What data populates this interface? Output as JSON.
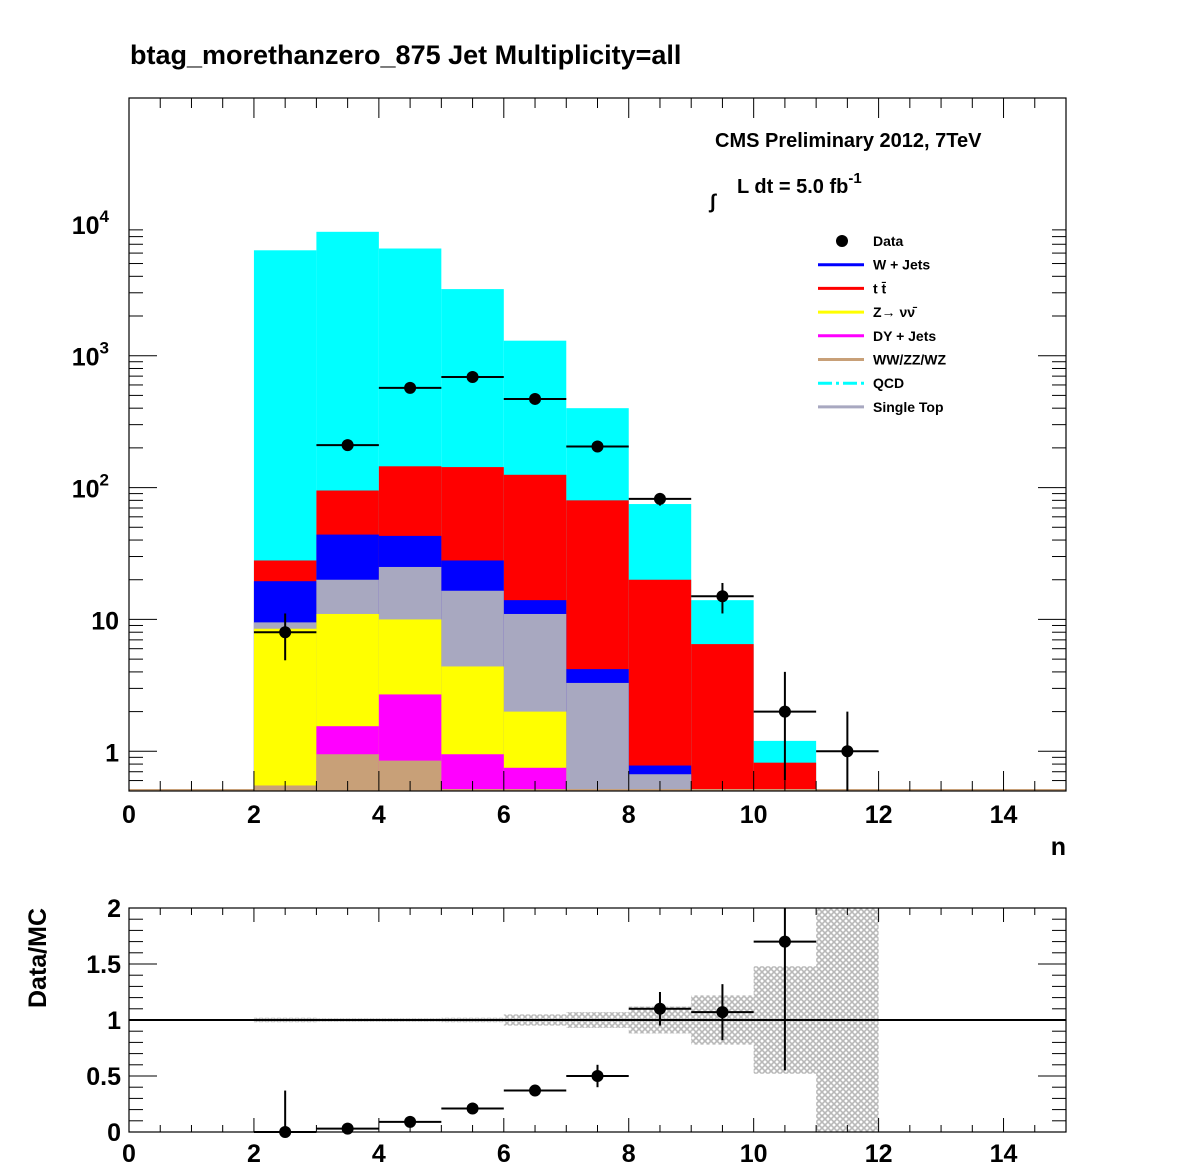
{
  "title": "btag_morethanzero_875    Jet Multiplicity=all",
  "chart_data": [
    {
      "type": "bar",
      "subtype": "stacked-histogram-with-data-points",
      "log_scale_y": true,
      "xlabel": "n",
      "ylabel": "",
      "xlim": [
        0,
        15
      ],
      "ylim": [
        0.5,
        90000
      ],
      "x_ticks": [
        0,
        2,
        4,
        6,
        8,
        10,
        12,
        14
      ],
      "y_ticks": [
        {
          "value": 1,
          "label": "1",
          "sup": ""
        },
        {
          "value": 10,
          "label": "10",
          "sup": ""
        },
        {
          "value": 100,
          "label": "10",
          "sup": "2"
        },
        {
          "value": 1000,
          "label": "10",
          "sup": "3"
        },
        {
          "value": 10000,
          "label": "10",
          "sup": "4"
        }
      ],
      "bin_edges": [
        2,
        3,
        4,
        5,
        6,
        7,
        8,
        9,
        10,
        11
      ],
      "stack_order_bottom_to_top": [
        "WW/ZZ/WZ",
        "DY + Jets",
        "Z→ νν̄",
        "Single Top",
        "W + Jets",
        "t t̄",
        "QCD"
      ],
      "stack_totals": [
        {
          "name": "WW/ZZ/WZ",
          "color": "#c8a078",
          "values": [
            0.55,
            0.95,
            0.85,
            null,
            null,
            null,
            null,
            null,
            null
          ]
        },
        {
          "name": "DY + Jets",
          "color": "#ff00ff",
          "values": [
            0.55,
            1.55,
            2.7,
            0.95,
            0.75,
            null,
            null,
            null,
            null
          ]
        },
        {
          "name": "Z→ νν̄",
          "color": "#ffff00",
          "values": [
            8.5,
            11,
            10,
            4.4,
            2.0,
            0.5,
            null,
            null,
            null
          ]
        },
        {
          "name": "Single Top",
          "color": "#a8a8c0",
          "values": [
            9.5,
            20,
            25,
            16.5,
            11,
            3.3,
            0.67,
            null,
            null
          ]
        },
        {
          "name": "W + Jets",
          "color": "#0000ff",
          "values": [
            19.5,
            44,
            43,
            28,
            14,
            4.2,
            0.78,
            null,
            null
          ]
        },
        {
          "name": "t t̄",
          "color": "#ff0000",
          "values": [
            28,
            95,
            145,
            143,
            125,
            80,
            20,
            6.5,
            0.82
          ]
        },
        {
          "name": "QCD",
          "color": "#00ffff",
          "values": [
            6300,
            8700,
            6500,
            3200,
            1300,
            400,
            75,
            14,
            1.2
          ]
        }
      ],
      "data_points": {
        "name": "Data",
        "x": [
          2.5,
          3.5,
          4.5,
          5.5,
          6.5,
          7.5,
          8.5,
          9.5,
          10.5,
          11.5
        ],
        "y": [
          8,
          210,
          570,
          690,
          470,
          205,
          82,
          15,
          2,
          1
        ],
        "err_low": [
          3.1,
          14,
          24,
          26,
          22,
          14,
          9,
          3.9,
          1.4,
          1
        ],
        "err_high": [
          3.1,
          14,
          24,
          26,
          22,
          14,
          9,
          3.9,
          2,
          1
        ]
      },
      "legend": {
        "placement": "top-right",
        "entries": [
          {
            "name": "Data",
            "style": "marker",
            "color": "#000000"
          },
          {
            "name": "W + Jets",
            "style": "line",
            "color": "#0000ff"
          },
          {
            "name": "t t̄",
            "style": "line",
            "color": "#ff0000"
          },
          {
            "name": "Z→ νν̄",
            "style": "line",
            "color": "#ffff00"
          },
          {
            "name": "DY + Jets",
            "style": "line",
            "color": "#ff00ff"
          },
          {
            "name": "WW/ZZ/WZ",
            "style": "line",
            "color": "#c8a078"
          },
          {
            "name": "QCD",
            "style": "dashdot",
            "color": "#00ffff"
          },
          {
            "name": "Single Top",
            "style": "line",
            "color": "#a8a8c0"
          }
        ]
      },
      "annotations": {
        "experiment": "CMS Preliminary 2012, 7TeV",
        "lumi_prefix": "L dt = 5.0 fb",
        "lumi_sup": "-1"
      }
    },
    {
      "type": "scatter",
      "subtype": "ratio-panel",
      "ylabel": "Data/MC",
      "xlim": [
        0,
        15
      ],
      "ylim": [
        0,
        2
      ],
      "x_ticks": [
        0,
        2,
        4,
        6,
        8,
        10,
        12,
        14
      ],
      "y_ticks": [
        {
          "value": 0,
          "label": "0"
        },
        {
          "value": 0.5,
          "label": "0.5"
        },
        {
          "value": 1,
          "label": "1"
        },
        {
          "value": 1.5,
          "label": "1.5"
        },
        {
          "value": 2,
          "label": "2"
        }
      ],
      "reference_line": 1,
      "uncertainty_band": {
        "bin_edges": [
          2,
          3,
          4,
          5,
          6,
          7,
          8,
          9,
          10,
          11,
          12
        ],
        "low": [
          0.98,
          0.985,
          0.985,
          0.98,
          0.95,
          0.93,
          0.88,
          0.78,
          0.52,
          0.0
        ],
        "high": [
          1.02,
          1.015,
          1.015,
          1.02,
          1.05,
          1.07,
          1.12,
          1.22,
          1.48,
          2.0
        ]
      },
      "points": {
        "x": [
          2.5,
          3.5,
          4.5,
          5.5,
          6.5,
          7.5,
          8.5,
          9.5,
          10.5
        ],
        "y": [
          0.0,
          0.03,
          0.09,
          0.21,
          0.37,
          0.5,
          1.1,
          1.07,
          1.7
        ],
        "err": [
          0.37,
          0.04,
          0.04,
          0.03,
          0.05,
          0.1,
          0.15,
          0.25,
          1.15
        ]
      }
    }
  ]
}
